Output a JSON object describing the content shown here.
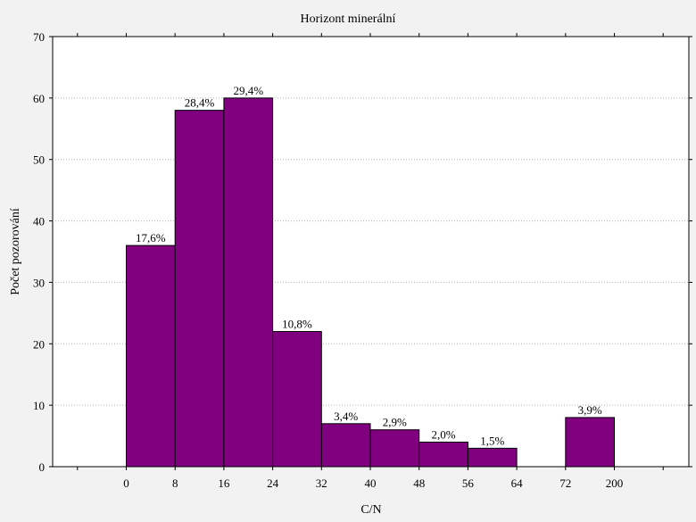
{
  "chart_data": {
    "type": "bar",
    "title": "Horizont minerální",
    "xlabel": "C/N",
    "ylabel": "Počet pozorování",
    "ylim": [
      0,
      70
    ],
    "yticks": [
      0,
      10,
      20,
      30,
      40,
      50,
      60,
      70
    ],
    "xtick_labels": [
      "0",
      "8",
      "16",
      "24",
      "32",
      "40",
      "48",
      "56",
      "64",
      "72",
      "200"
    ],
    "bins": [
      {
        "from": "0",
        "to": "8",
        "value": 36,
        "label": "17,6%"
      },
      {
        "from": "8",
        "to": "16",
        "value": 58,
        "label": "28,4%"
      },
      {
        "from": "16",
        "to": "24",
        "value": 60,
        "label": "29,4%"
      },
      {
        "from": "24",
        "to": "32",
        "value": 22,
        "label": "10,8%"
      },
      {
        "from": "32",
        "to": "40",
        "value": 7,
        "label": "3,4%"
      },
      {
        "from": "40",
        "to": "48",
        "value": 6,
        "label": "2,9%"
      },
      {
        "from": "48",
        "to": "56",
        "value": 4,
        "label": "2,0%"
      },
      {
        "from": "56",
        "to": "64",
        "value": 3,
        "label": "1,5%"
      },
      {
        "from": "64",
        "to": "72",
        "value": 0,
        "label": ""
      },
      {
        "from": "72",
        "to": "200",
        "value": 8,
        "label": "3,9%"
      }
    ],
    "grid": true,
    "bar_color": "#800080"
  }
}
